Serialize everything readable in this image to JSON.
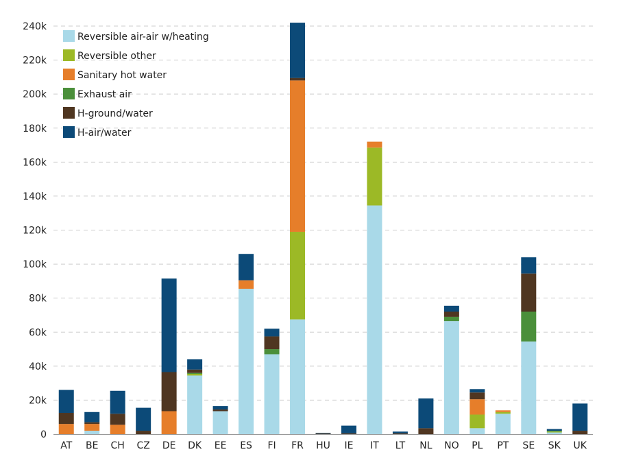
{
  "chart_data": {
    "type": "bar",
    "stacked": true,
    "title": "",
    "xlabel": "",
    "ylabel": "",
    "ylim": [
      0,
      240000
    ],
    "yticks": [
      0,
      20000,
      40000,
      60000,
      80000,
      100000,
      120000,
      140000,
      160000,
      180000,
      200000,
      220000,
      240000
    ],
    "ytick_labels": [
      "0",
      "20k",
      "40k",
      "60k",
      "80k",
      "100k",
      "120k",
      "140k",
      "160k",
      "180k",
      "200k",
      "220k",
      "240k"
    ],
    "grid": true,
    "legend_position": "top-left",
    "categories": [
      "AT",
      "BE",
      "CH",
      "CZ",
      "DE",
      "DK",
      "EE",
      "ES",
      "FI",
      "FR",
      "HU",
      "IE",
      "IT",
      "LT",
      "NL",
      "NO",
      "PL",
      "PT",
      "SE",
      "SK",
      "UK"
    ],
    "series": [
      {
        "name": "Reversible air-air w/heating",
        "color": "#a9d9e8",
        "values": [
          0,
          2000,
          0,
          0,
          0,
          34500,
          13500,
          85500,
          47000,
          67500,
          0,
          0,
          134500,
          0,
          0,
          66500,
          3500,
          12000,
          54500,
          1000,
          0
        ]
      },
      {
        "name": "Reversible other",
        "color": "#9cb926",
        "values": [
          0,
          0,
          0,
          0,
          0,
          1000,
          0,
          0,
          0,
          51500,
          0,
          0,
          34000,
          0,
          0,
          0,
          8000,
          1000,
          0,
          500,
          0
        ]
      },
      {
        "name": "Sanitary hot water",
        "color": "#e67e2a",
        "values": [
          6000,
          4000,
          5500,
          0,
          13500,
          0,
          0,
          5000,
          0,
          89000,
          0,
          0,
          3500,
          0,
          0,
          0,
          9000,
          1000,
          0,
          0,
          0
        ]
      },
      {
        "name": "Exhaust air",
        "color": "#4a8f3a",
        "values": [
          0,
          0,
          0,
          0,
          0,
          500,
          0,
          0,
          3000,
          0,
          0,
          0,
          0,
          0,
          0,
          2500,
          0,
          0,
          17500,
          500,
          0
        ]
      },
      {
        "name": "H-ground/water",
        "color": "#4f3621",
        "values": [
          6500,
          1000,
          6500,
          2000,
          23000,
          2000,
          1000,
          0,
          7500,
          1500,
          500,
          500,
          0,
          500,
          3500,
          3000,
          4000,
          0,
          22500,
          0,
          2000
        ]
      },
      {
        "name": "H-air/water",
        "color": "#0c4a78",
        "values": [
          13500,
          6000,
          13500,
          13500,
          55000,
          6000,
          2000,
          15500,
          4500,
          32500,
          200,
          4500,
          0,
          1000,
          17500,
          3500,
          2000,
          0,
          9500,
          1000,
          16000
        ]
      }
    ]
  }
}
